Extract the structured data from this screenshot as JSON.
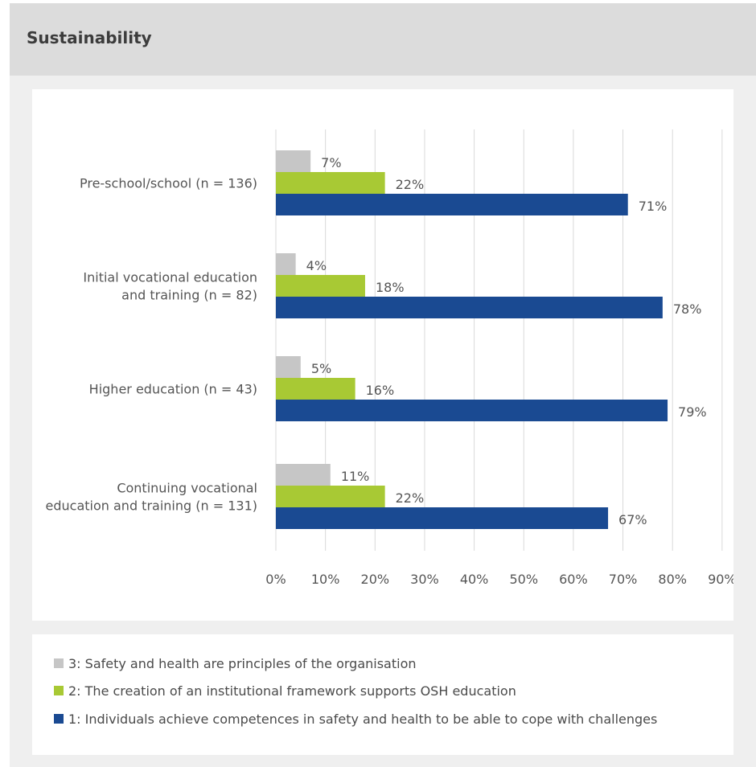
{
  "header": {
    "title": "Sustainability"
  },
  "chart_data": {
    "type": "bar",
    "orientation": "horizontal",
    "categories": [
      [
        "Pre-school/school (n = 136)"
      ],
      [
        "Initial vocational education",
        "and training (n = 82)"
      ],
      [
        "Higher education (n = 43)"
      ],
      [
        "Continuing vocational",
        "education and training (n = 131)"
      ]
    ],
    "series": [
      {
        "name": "3: Safety and health are principles of the organisation",
        "color": "#c6c6c6",
        "values": [
          7,
          4,
          5,
          11
        ],
        "labels": [
          "7%",
          "4%",
          "5%",
          "11%"
        ]
      },
      {
        "name": "2: The creation of an institutional framework supports OSH education",
        "color": "#a8c934",
        "values": [
          22,
          18,
          16,
          22
        ],
        "labels": [
          "22%",
          "18%",
          "16%",
          "22%"
        ]
      },
      {
        "name": "1: Individuals achieve competences in safety and health to be able to cope with challenges",
        "color": "#1a4a92",
        "values": [
          71,
          78,
          79,
          67
        ],
        "labels": [
          "71%",
          "78%",
          "79%",
          "67%"
        ]
      }
    ],
    "xlim": [
      0,
      90
    ],
    "xticks": [
      "0%",
      "10%",
      "20%",
      "30%",
      "40%",
      "50%",
      "60%",
      "70%",
      "80%",
      "90%"
    ],
    "grid": true,
    "legend_position": "bottom"
  }
}
